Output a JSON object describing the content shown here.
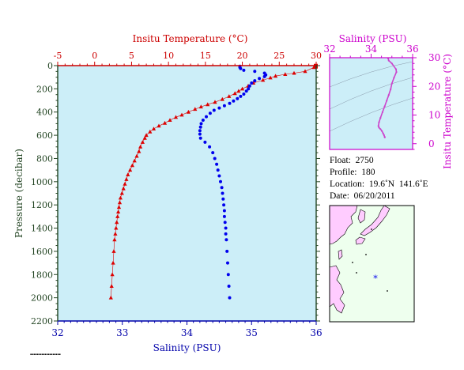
{
  "chart_data": [
    {
      "type": "scatter",
      "top_axis": {
        "label": "Insitu Temperature (°C)",
        "range": [
          -5,
          30
        ],
        "ticks": [
          -5,
          0,
          5,
          10,
          15,
          20,
          25,
          30
        ],
        "color": "#cc0000"
      },
      "bottom_axis": {
        "label": "Salinity (PSU)",
        "range": [
          32,
          36
        ],
        "ticks": [
          32,
          33,
          34,
          35,
          36
        ],
        "color": "#0000aa"
      },
      "left_axis": {
        "label": "Pressure (decibar)",
        "range": [
          0,
          2200
        ],
        "reversed": true,
        "ticks": [
          0,
          200,
          400,
          600,
          800,
          1000,
          1200,
          1400,
          1600,
          1800,
          2000,
          2200
        ],
        "color": "#224422"
      },
      "background": "#cceef8",
      "series": [
        {
          "axis": "temperature",
          "marker": "triangle",
          "color": "#dd0000",
          "points": [
            [
              29.9,
              5
            ],
            [
              29.7,
              15
            ],
            [
              28.5,
              50
            ],
            [
              27.0,
              65
            ],
            [
              25.8,
              75
            ],
            [
              24.5,
              90
            ],
            [
              23.8,
              105
            ],
            [
              22.8,
              125
            ],
            [
              21.5,
              150
            ],
            [
              20.8,
              175
            ],
            [
              20.0,
              200
            ],
            [
              19.5,
              220
            ],
            [
              19.0,
              240
            ],
            [
              18.2,
              265
            ],
            [
              17.3,
              290
            ],
            [
              16.3,
              315
            ],
            [
              15.3,
              335
            ],
            [
              14.4,
              355
            ],
            [
              13.6,
              375
            ],
            [
              12.7,
              400
            ],
            [
              11.8,
              425
            ],
            [
              11.0,
              445
            ],
            [
              10.2,
              470
            ],
            [
              9.5,
              495
            ],
            [
              8.7,
              520
            ],
            [
              8.0,
              545
            ],
            [
              7.5,
              570
            ],
            [
              7.0,
              600
            ],
            [
              6.8,
              625
            ],
            [
              6.5,
              660
            ],
            [
              6.2,
              700
            ],
            [
              6.0,
              740
            ],
            [
              5.7,
              780
            ],
            [
              5.4,
              820
            ],
            [
              5.1,
              860
            ],
            [
              4.8,
              900
            ],
            [
              4.5,
              940
            ],
            [
              4.3,
              980
            ],
            [
              4.1,
              1020
            ],
            [
              3.9,
              1060
            ],
            [
              3.7,
              1100
            ],
            [
              3.5,
              1140
            ],
            [
              3.4,
              1180
            ],
            [
              3.3,
              1220
            ],
            [
              3.2,
              1260
            ],
            [
              3.1,
              1300
            ],
            [
              3.0,
              1350
            ],
            [
              2.9,
              1400
            ],
            [
              2.8,
              1450
            ],
            [
              2.7,
              1500
            ],
            [
              2.6,
              1600
            ],
            [
              2.5,
              1700
            ],
            [
              2.4,
              1800
            ],
            [
              2.3,
              1900
            ],
            [
              2.2,
              2000
            ]
          ]
        },
        {
          "axis": "salinity",
          "marker": "circle",
          "color": "#0000ee",
          "points": [
            [
              34.82,
              5
            ],
            [
              34.82,
              15
            ],
            [
              34.83,
              25
            ],
            [
              34.88,
              40
            ],
            [
              35.05,
              50
            ],
            [
              35.2,
              65
            ],
            [
              35.22,
              80
            ],
            [
              35.2,
              95
            ],
            [
              35.12,
              110
            ],
            [
              35.05,
              130
            ],
            [
              35.0,
              150
            ],
            [
              34.97,
              175
            ],
            [
              34.95,
              200
            ],
            [
              34.92,
              220
            ],
            [
              34.88,
              245
            ],
            [
              34.83,
              265
            ],
            [
              34.78,
              285
            ],
            [
              34.72,
              305
            ],
            [
              34.66,
              325
            ],
            [
              34.58,
              345
            ],
            [
              34.5,
              365
            ],
            [
              34.42,
              385
            ],
            [
              34.36,
              410
            ],
            [
              34.3,
              440
            ],
            [
              34.25,
              470
            ],
            [
              34.22,
              500
            ],
            [
              34.21,
              530
            ],
            [
              34.2,
              560
            ],
            [
              34.2,
              590
            ],
            [
              34.21,
              625
            ],
            [
              34.28,
              660
            ],
            [
              34.35,
              700
            ],
            [
              34.4,
              750
            ],
            [
              34.43,
              800
            ],
            [
              34.46,
              850
            ],
            [
              34.48,
              900
            ],
            [
              34.5,
              950
            ],
            [
              34.52,
              1000
            ],
            [
              34.54,
              1050
            ],
            [
              34.55,
              1100
            ],
            [
              34.56,
              1150
            ],
            [
              34.57,
              1200
            ],
            [
              34.58,
              1250
            ],
            [
              34.58,
              1300
            ],
            [
              34.59,
              1350
            ],
            [
              34.6,
              1400
            ],
            [
              34.6,
              1450
            ],
            [
              34.61,
              1500
            ],
            [
              34.62,
              1600
            ],
            [
              34.63,
              1700
            ],
            [
              34.64,
              1800
            ],
            [
              34.65,
              1900
            ],
            [
              34.66,
              2000
            ]
          ]
        }
      ]
    },
    {
      "type": "line",
      "top_axis": {
        "label": "Salinity (PSU)",
        "range": [
          32,
          36
        ],
        "ticks": [
          32,
          34,
          36
        ],
        "color": "#cc00cc"
      },
      "right_axis": {
        "label": "Insitu Temperature (°C)",
        "range": [
          -2,
          30
        ],
        "ticks": [
          0,
          10,
          20,
          30
        ],
        "color": "#cc00cc"
      },
      "background": "#cceef8",
      "series": [
        {
          "color": "#cc44cc",
          "points": [
            [
              34.82,
              29.8
            ],
            [
              34.85,
              29.0
            ],
            [
              35.0,
              28.0
            ],
            [
              35.2,
              26.0
            ],
            [
              35.22,
              25.0
            ],
            [
              35.1,
              23.0
            ],
            [
              35.0,
              21.0
            ],
            [
              34.94,
              19.0
            ],
            [
              34.85,
              17.0
            ],
            [
              34.75,
              15.0
            ],
            [
              34.65,
              13.0
            ],
            [
              34.55,
              11.0
            ],
            [
              34.45,
              9.0
            ],
            [
              34.38,
              7.5
            ],
            [
              34.35,
              6.2
            ],
            [
              34.38,
              5.6
            ],
            [
              34.45,
              5.1
            ],
            [
              34.52,
              4.4
            ],
            [
              34.58,
              3.6
            ],
            [
              34.62,
              3.0
            ],
            [
              34.65,
              2.4
            ],
            [
              34.66,
              2.2
            ]
          ]
        }
      ]
    }
  ],
  "float_info": {
    "float": "Float:  2750",
    "profile": "Profile:  180",
    "location": "Location:  19.6˚N  141.6˚E",
    "date": "Date:  06/20/2011"
  },
  "map": {
    "land_color": "#ffccff",
    "sea_color": "#eeffee",
    "marker": "*",
    "marker_color": "#0000ee"
  }
}
